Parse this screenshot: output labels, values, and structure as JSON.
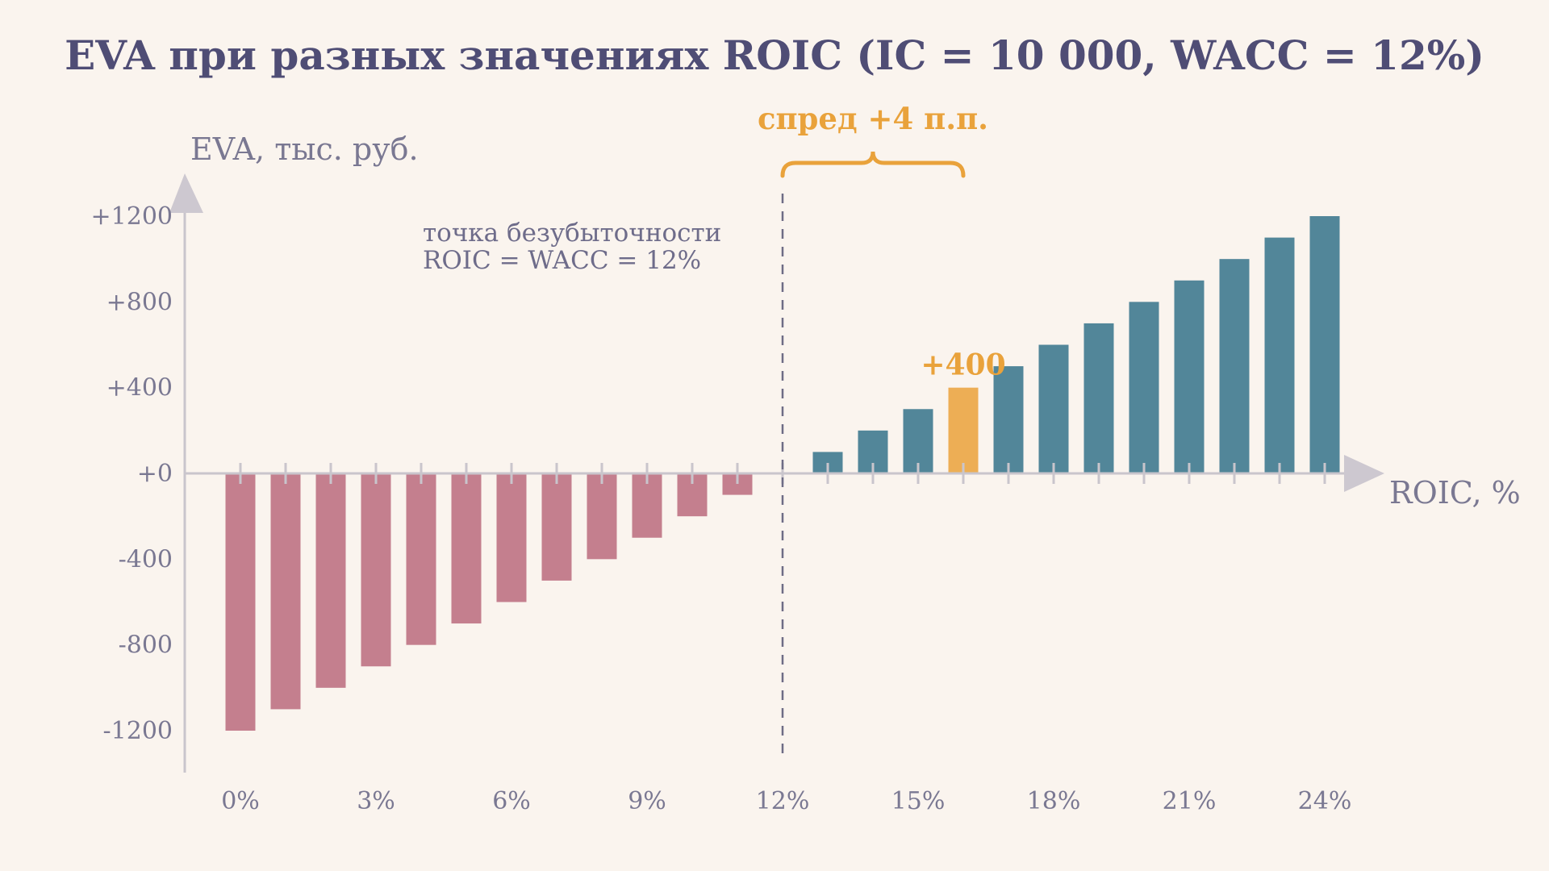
{
  "chart_data": {
    "type": "bar",
    "title": "EVA при разных значениях ROIC (IC = 10 000, WACC = 12%)",
    "ylabel": "EVA, тыс. руб.",
    "xlabel": "ROIC, %",
    "x": [
      0,
      1,
      2,
      3,
      4,
      5,
      6,
      7,
      8,
      9,
      10,
      11,
      12,
      13,
      14,
      15,
      16,
      17,
      18,
      19,
      20,
      21,
      22,
      23,
      24
    ],
    "values": [
      -1200,
      -1100,
      -1000,
      -900,
      -800,
      -700,
      -600,
      -500,
      -400,
      -300,
      -200,
      -100,
      0,
      100,
      200,
      300,
      400,
      500,
      600,
      700,
      800,
      900,
      1000,
      1100,
      1200
    ],
    "xticks": [
      "0%",
      "3%",
      "6%",
      "9%",
      "12%",
      "15%",
      "18%",
      "21%",
      "24%"
    ],
    "xtick_values": [
      0,
      3,
      6,
      9,
      12,
      15,
      18,
      21,
      24
    ],
    "yticks": [
      "+1200",
      "+800",
      "+400",
      "+0",
      "-400",
      "-800",
      "-1200"
    ],
    "ytick_values": [
      1200,
      800,
      400,
      0,
      -400,
      -800,
      -1200
    ],
    "ylim": [
      -1400,
      1400
    ],
    "xlim": [
      -0.5,
      24.5
    ],
    "highlight_x": 16,
    "highlight_label": "+400",
    "breakeven_x": 12,
    "breakeven_label_line1": "точка безубыточности",
    "breakeven_label_line2": "ROIC = WACC = 12%",
    "spread_label": "спред +4 п.п.",
    "grid": false,
    "colors": {
      "negative": "#c47f8e",
      "positive": "#528699",
      "highlight": "#edae55",
      "accent": "#e9a23b",
      "axis": "#c9c5cc"
    }
  }
}
